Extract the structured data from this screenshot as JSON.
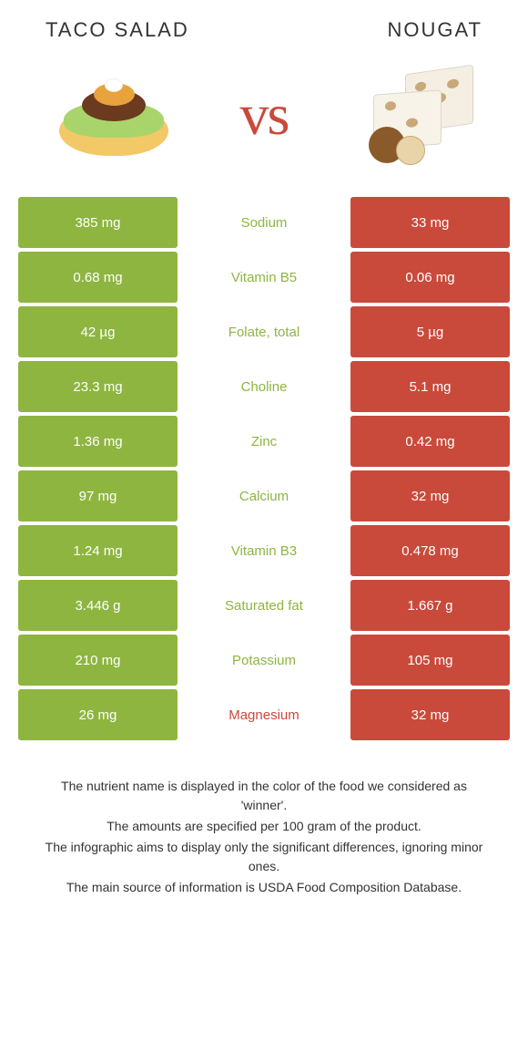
{
  "header": {
    "left_title": "Taco salad",
    "right_title": "Nougat",
    "vs_label": "vs"
  },
  "colors": {
    "left_food": "#8eb540",
    "right_food": "#c94a3b",
    "left_cell_bg": "#8eb540",
    "right_cell_bg": "#c94a3b",
    "cell_text": "#ffffff"
  },
  "rows": [
    {
      "left": "385 mg",
      "label": "Sodium",
      "right": "33 mg",
      "winner": "left"
    },
    {
      "left": "0.68 mg",
      "label": "Vitamin B5",
      "right": "0.06 mg",
      "winner": "left"
    },
    {
      "left": "42 µg",
      "label": "Folate, total",
      "right": "5 µg",
      "winner": "left"
    },
    {
      "left": "23.3 mg",
      "label": "Choline",
      "right": "5.1 mg",
      "winner": "left"
    },
    {
      "left": "1.36 mg",
      "label": "Zinc",
      "right": "0.42 mg",
      "winner": "left"
    },
    {
      "left": "97 mg",
      "label": "Calcium",
      "right": "32 mg",
      "winner": "left"
    },
    {
      "left": "1.24 mg",
      "label": "Vitamin B3",
      "right": "0.478 mg",
      "winner": "left"
    },
    {
      "left": "3.446 g",
      "label": "Saturated fat",
      "right": "1.667 g",
      "winner": "left"
    },
    {
      "left": "210 mg",
      "label": "Potassium",
      "right": "105 mg",
      "winner": "left"
    },
    {
      "left": "26 mg",
      "label": "Magnesium",
      "right": "32 mg",
      "winner": "right"
    }
  ],
  "footer": {
    "line1": "The nutrient name is displayed in the color of the food we considered as 'winner'.",
    "line2": "The amounts are specified per 100 gram of the product.",
    "line3": "The infographic aims to display only the significant differences, ignoring minor ones.",
    "line4": "The main source of information is USDA Food Composition Database."
  }
}
